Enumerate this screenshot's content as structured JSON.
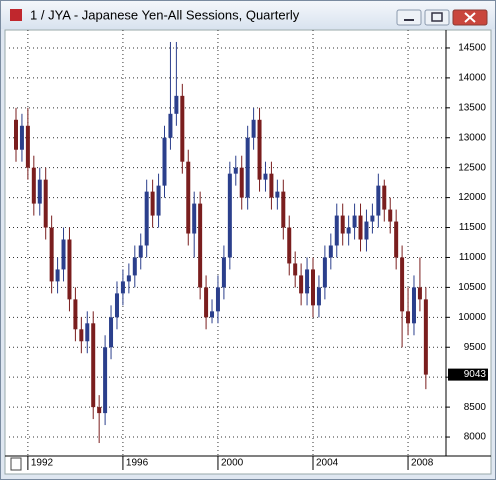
{
  "window_title": "1 / JYA - Japanese Yen-All Sessions, Quarterly",
  "chart_data": {
    "type": "candlestick",
    "categories": [
      null,
      null,
      "1992",
      null,
      null,
      null,
      null,
      null,
      null,
      null,
      null,
      null,
      null,
      null,
      null,
      null,
      null,
      null,
      "1996",
      null,
      null,
      null,
      null,
      null,
      null,
      null,
      null,
      null,
      null,
      null,
      null,
      null,
      null,
      null,
      "2000",
      null,
      null,
      null,
      null,
      null,
      null,
      null,
      null,
      null,
      null,
      null,
      null,
      null,
      null,
      null,
      "2004",
      null,
      null,
      null,
      null,
      null,
      null,
      null,
      null,
      null,
      null,
      null,
      null,
      null,
      null,
      null,
      "2008",
      null,
      null,
      null
    ],
    "open": [
      13300,
      12800,
      13200,
      12500,
      11900,
      12300,
      11500,
      10600,
      10800,
      11300,
      10300,
      9800,
      9600,
      9900,
      8500,
      8400,
      9500,
      10000,
      10400,
      10600,
      10700,
      11000,
      11200,
      12100,
      11700,
      12200,
      13000,
      13400,
      13700,
      12600,
      11400,
      11900,
      10500,
      10000,
      10100,
      10500,
      11000,
      12400,
      12500,
      12000,
      13000,
      13300,
      12300,
      12400,
      12000,
      12100,
      11500,
      10900,
      10700,
      10400,
      10800,
      10200,
      10500,
      11000,
      11200,
      11700,
      11400,
      11500,
      11700,
      11300,
      11600,
      11700,
      12200,
      11800,
      11600,
      11000,
      10100,
      9900,
      10500,
      10300
    ],
    "high": [
      13500,
      13400,
      13500,
      12700,
      12500,
      12500,
      11700,
      11000,
      11500,
      11500,
      10500,
      10000,
      10100,
      10100,
      8700,
      9700,
      10200,
      10600,
      10800,
      10900,
      11200,
      11400,
      12300,
      12300,
      12400,
      13200,
      14600,
      14600,
      13900,
      12800,
      12100,
      12100,
      10700,
      10300,
      10700,
      11200,
      12600,
      12700,
      12700,
      13200,
      13500,
      13500,
      12600,
      12600,
      12300,
      12300,
      11700,
      11100,
      10900,
      11000,
      11000,
      10700,
      11200,
      11400,
      11900,
      11900,
      11700,
      11900,
      11900,
      11800,
      11900,
      12400,
      12300,
      12000,
      11800,
      11200,
      10500,
      10700,
      11000,
      10500
    ],
    "low": [
      12600,
      12600,
      12300,
      11700,
      11700,
      11300,
      10400,
      10400,
      10600,
      10100,
      9600,
      9400,
      9400,
      8300,
      7900,
      8200,
      9300,
      9800,
      10200,
      10400,
      10500,
      10800,
      11000,
      11500,
      11500,
      12000,
      12800,
      13200,
      12400,
      11200,
      11000,
      10300,
      9800,
      9900,
      9900,
      10300,
      10800,
      12200,
      11800,
      11800,
      12800,
      12100,
      12100,
      11800,
      11800,
      11300,
      10700,
      10500,
      10200,
      10200,
      10000,
      10000,
      10300,
      10800,
      11000,
      11200,
      11200,
      11300,
      11100,
      11100,
      11400,
      11500,
      11600,
      11400,
      10800,
      9500,
      9700,
      9700,
      10100,
      8800
    ],
    "close": [
      12800,
      13200,
      12500,
      11900,
      12300,
      11500,
      10600,
      10800,
      11300,
      10300,
      9800,
      9600,
      9900,
      8500,
      8400,
      9500,
      10000,
      10400,
      10600,
      10700,
      11000,
      11200,
      12100,
      11700,
      12200,
      13000,
      13400,
      13700,
      12600,
      11400,
      11900,
      10500,
      10000,
      10100,
      10500,
      11000,
      12400,
      12500,
      12000,
      13000,
      13300,
      12300,
      12400,
      12000,
      12100,
      11500,
      10900,
      10700,
      10400,
      10800,
      10200,
      10500,
      11000,
      11200,
      11700,
      11400,
      11500,
      11700,
      11300,
      11600,
      11700,
      12200,
      11800,
      11600,
      11000,
      10100,
      9900,
      10500,
      10300,
      9043
    ],
    "up_color": "#2b3f8c",
    "down_color": "#7a1e1e",
    "ylim": [
      7700,
      14800
    ],
    "yticks": [
      8000,
      8500,
      9000,
      9500,
      10000,
      10500,
      11000,
      11500,
      12000,
      12500,
      13000,
      13500,
      14000,
      14500
    ],
    "grid": true
  }
}
